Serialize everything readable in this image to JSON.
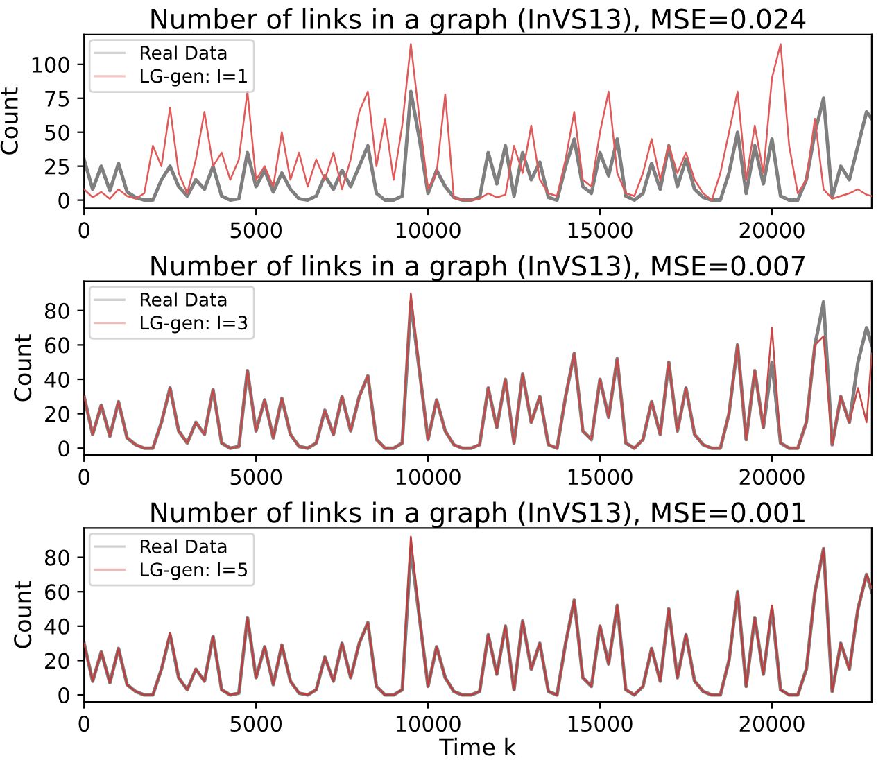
{
  "chart_data": [
    {
      "type": "line",
      "title": "Number of links in a graph (InVS13), MSE=0.024",
      "ylabel": "Count",
      "xlim": [
        0,
        22900
      ],
      "xticks": [
        0,
        5000,
        10000,
        15000,
        20000
      ],
      "ylim": [
        -6,
        122
      ],
      "yticks": [
        0,
        25,
        50,
        75,
        100
      ],
      "legend": "top left",
      "grid": false,
      "marker": "none",
      "line_style": "solid",
      "x": [
        0,
        250,
        500,
        750,
        1000,
        1250,
        1500,
        1750,
        2000,
        2250,
        2500,
        2750,
        3000,
        3250,
        3500,
        3750,
        4000,
        4250,
        4500,
        4750,
        5000,
        5250,
        5500,
        5750,
        6000,
        6250,
        6500,
        6750,
        7000,
        7250,
        7500,
        7750,
        8000,
        8250,
        8500,
        8750,
        9000,
        9250,
        9500,
        9750,
        10000,
        10250,
        10500,
        10750,
        11000,
        11250,
        11500,
        11750,
        12000,
        12250,
        12500,
        12750,
        13000,
        13250,
        13500,
        13750,
        14000,
        14250,
        14500,
        14750,
        15000,
        15250,
        15500,
        15750,
        16000,
        16250,
        16500,
        16750,
        17000,
        17250,
        17500,
        17750,
        18000,
        18250,
        18500,
        18750,
        19000,
        19250,
        19500,
        19750,
        20000,
        20250,
        20500,
        20750,
        21000,
        21250,
        21500,
        21750,
        22000,
        22250,
        22500,
        22750,
        22900
      ],
      "series": [
        {
          "name": "Real Data",
          "color": "#7f7f7f",
          "values": [
            30,
            8,
            25,
            7,
            27,
            6,
            2,
            0,
            0,
            15,
            25,
            10,
            3,
            15,
            8,
            25,
            3,
            0,
            1,
            35,
            10,
            22,
            6,
            20,
            8,
            1,
            0,
            3,
            18,
            8,
            22,
            10,
            25,
            40,
            5,
            0,
            0,
            3,
            80,
            45,
            5,
            22,
            10,
            2,
            0,
            0,
            2,
            35,
            12,
            40,
            3,
            35,
            15,
            28,
            2,
            0,
            25,
            45,
            10,
            5,
            35,
            18,
            45,
            3,
            0,
            5,
            27,
            8,
            40,
            10,
            30,
            8,
            2,
            0,
            0,
            20,
            50,
            5,
            40,
            12,
            45,
            3,
            0,
            0,
            15,
            50,
            75,
            2,
            25,
            15,
            40,
            65,
            60
          ]
        },
        {
          "name": "LG-gen: l=1",
          "color": "#e05a5a",
          "values": [
            8,
            2,
            6,
            1,
            8,
            3,
            1,
            5,
            40,
            25,
            68,
            20,
            5,
            30,
            65,
            25,
            35,
            15,
            30,
            80,
            15,
            25,
            10,
            50,
            15,
            35,
            10,
            30,
            15,
            35,
            8,
            30,
            65,
            80,
            25,
            60,
            15,
            55,
            115,
            60,
            8,
            20,
            78,
            2,
            0,
            0,
            1,
            5,
            2,
            4,
            40,
            20,
            55,
            15,
            5,
            3,
            30,
            65,
            15,
            10,
            50,
            80,
            20,
            5,
            3,
            20,
            45,
            15,
            40,
            20,
            35,
            15,
            5,
            0,
            20,
            50,
            80,
            15,
            55,
            20,
            90,
            115,
            40,
            5,
            15,
            60,
            8,
            1,
            3,
            5,
            8,
            4,
            3
          ]
        }
      ]
    },
    {
      "type": "line",
      "title": "Number of links in a graph (InVS13), MSE=0.007",
      "ylabel": "Count",
      "xlim": [
        0,
        22900
      ],
      "xticks": [
        0,
        5000,
        10000,
        15000,
        20000
      ],
      "ylim": [
        -4,
        97
      ],
      "yticks": [
        0,
        20,
        40,
        60,
        80
      ],
      "legend": "top left",
      "grid": false,
      "marker": "none",
      "line_style": "solid",
      "x": [
        0,
        250,
        500,
        750,
        1000,
        1250,
        1500,
        1750,
        2000,
        2250,
        2500,
        2750,
        3000,
        3250,
        3500,
        3750,
        4000,
        4250,
        4500,
        4750,
        5000,
        5250,
        5500,
        5750,
        6000,
        6250,
        6500,
        6750,
        7000,
        7250,
        7500,
        7750,
        8000,
        8250,
        8500,
        8750,
        9000,
        9250,
        9500,
        9750,
        10000,
        10250,
        10500,
        10750,
        11000,
        11250,
        11500,
        11750,
        12000,
        12250,
        12500,
        12750,
        13000,
        13250,
        13500,
        13750,
        14000,
        14250,
        14500,
        14750,
        15000,
        15250,
        15500,
        15750,
        16000,
        16250,
        16500,
        16750,
        17000,
        17250,
        17500,
        17750,
        18000,
        18250,
        18500,
        18750,
        19000,
        19250,
        19500,
        19750,
        20000,
        20250,
        20500,
        20750,
        21000,
        21250,
        21500,
        21750,
        22000,
        22250,
        22500,
        22750,
        22900
      ],
      "series": [
        {
          "name": "Real Data",
          "color": "#7f7f7f",
          "values": [
            30,
            8,
            25,
            7,
            27,
            6,
            2,
            0,
            0,
            15,
            35,
            10,
            3,
            15,
            8,
            34,
            3,
            0,
            1,
            45,
            10,
            28,
            6,
            29,
            8,
            1,
            0,
            3,
            22,
            8,
            30,
            10,
            30,
            42,
            5,
            0,
            0,
            3,
            85,
            45,
            5,
            28,
            10,
            2,
            0,
            0,
            2,
            35,
            12,
            40,
            3,
            43,
            15,
            30,
            2,
            0,
            30,
            55,
            10,
            5,
            40,
            18,
            52,
            3,
            0,
            5,
            27,
            8,
            50,
            10,
            35,
            8,
            2,
            0,
            0,
            20,
            60,
            5,
            45,
            12,
            50,
            3,
            0,
            0,
            15,
            60,
            85,
            2,
            30,
            15,
            50,
            70,
            60
          ]
        },
        {
          "name": "LG-gen: l=3",
          "color": "#c84848",
          "values": [
            30,
            8,
            25,
            7,
            27,
            6,
            2,
            0,
            0,
            15,
            35,
            10,
            3,
            15,
            8,
            34,
            3,
            0,
            1,
            45,
            10,
            28,
            6,
            29,
            8,
            1,
            0,
            3,
            22,
            8,
            30,
            10,
            30,
            42,
            5,
            0,
            0,
            3,
            90,
            45,
            5,
            28,
            10,
            2,
            0,
            0,
            2,
            35,
            12,
            40,
            3,
            43,
            15,
            30,
            2,
            0,
            30,
            55,
            10,
            5,
            40,
            18,
            52,
            3,
            0,
            5,
            27,
            8,
            50,
            10,
            35,
            8,
            2,
            0,
            0,
            20,
            60,
            5,
            45,
            12,
            70,
            3,
            0,
            0,
            15,
            60,
            65,
            2,
            30,
            15,
            35,
            15,
            55
          ]
        }
      ]
    },
    {
      "type": "line",
      "title": "Number of links in a graph (InVS13), MSE=0.001",
      "xlabel": "Time k",
      "ylabel": "Count",
      "xlim": [
        0,
        22900
      ],
      "xticks": [
        0,
        5000,
        10000,
        15000,
        20000
      ],
      "ylim": [
        -4,
        97
      ],
      "yticks": [
        0,
        20,
        40,
        60,
        80
      ],
      "legend": "top left",
      "grid": false,
      "marker": "none",
      "line_style": "solid",
      "x": [
        0,
        250,
        500,
        750,
        1000,
        1250,
        1500,
        1750,
        2000,
        2250,
        2500,
        2750,
        3000,
        3250,
        3500,
        3750,
        4000,
        4250,
        4500,
        4750,
        5000,
        5250,
        5500,
        5750,
        6000,
        6250,
        6500,
        6750,
        7000,
        7250,
        7500,
        7750,
        8000,
        8250,
        8500,
        8750,
        9000,
        9250,
        9500,
        9750,
        10000,
        10250,
        10500,
        10750,
        11000,
        11250,
        11500,
        11750,
        12000,
        12250,
        12500,
        12750,
        13000,
        13250,
        13500,
        13750,
        14000,
        14250,
        14500,
        14750,
        15000,
        15250,
        15500,
        15750,
        16000,
        16250,
        16500,
        16750,
        17000,
        17250,
        17500,
        17750,
        18000,
        18250,
        18500,
        18750,
        19000,
        19250,
        19500,
        19750,
        20000,
        20250,
        20500,
        20750,
        21000,
        21250,
        21500,
        21750,
        22000,
        22250,
        22500,
        22750,
        22900
      ],
      "series": [
        {
          "name": "Real Data",
          "color": "#7f7f7f",
          "values": [
            30,
            8,
            25,
            7,
            27,
            6,
            2,
            0,
            0,
            15,
            35,
            10,
            3,
            15,
            8,
            34,
            3,
            0,
            1,
            45,
            10,
            28,
            6,
            29,
            8,
            1,
            0,
            3,
            22,
            8,
            30,
            10,
            30,
            42,
            5,
            0,
            0,
            3,
            85,
            45,
            5,
            28,
            10,
            2,
            0,
            0,
            2,
            35,
            12,
            40,
            3,
            43,
            15,
            30,
            2,
            0,
            30,
            55,
            10,
            5,
            40,
            18,
            52,
            3,
            0,
            5,
            27,
            8,
            50,
            10,
            35,
            8,
            2,
            0,
            0,
            20,
            60,
            5,
            45,
            12,
            50,
            3,
            0,
            0,
            15,
            60,
            85,
            2,
            30,
            15,
            50,
            70,
            60
          ]
        },
        {
          "name": "LG-gen: l=5",
          "color": "#c03c3c",
          "values": [
            30,
            8,
            25,
            7,
            27,
            6,
            2,
            0,
            0,
            15,
            36,
            10,
            3,
            15,
            8,
            34,
            3,
            0,
            1,
            45,
            10,
            28,
            6,
            29,
            8,
            1,
            0,
            3,
            22,
            8,
            30,
            10,
            30,
            42,
            5,
            0,
            0,
            3,
            92,
            45,
            5,
            28,
            10,
            2,
            0,
            0,
            2,
            35,
            12,
            40,
            3,
            43,
            15,
            30,
            2,
            0,
            30,
            55,
            10,
            5,
            40,
            18,
            52,
            3,
            0,
            5,
            27,
            8,
            50,
            10,
            35,
            8,
            2,
            0,
            0,
            20,
            60,
            5,
            45,
            12,
            52,
            3,
            0,
            0,
            15,
            60,
            85,
            2,
            30,
            15,
            50,
            70,
            62
          ]
        }
      ]
    }
  ]
}
